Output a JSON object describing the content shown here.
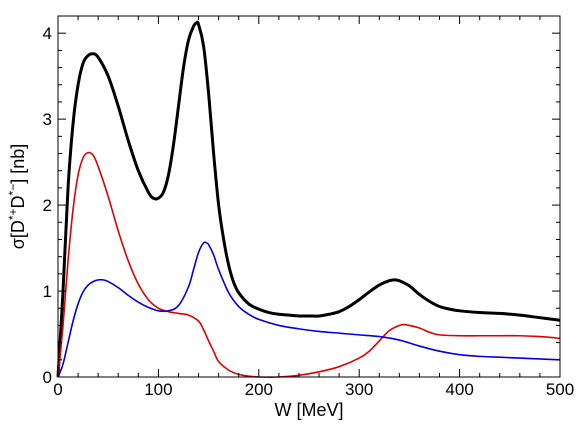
{
  "chart_data": {
    "type": "line",
    "title": "",
    "xlabel": "W [MeV]",
    "ylabel_parts": [
      "σ[D",
      "*+",
      "D",
      "*−",
      "] [nb]"
    ],
    "xlim": [
      0,
      500
    ],
    "ylim": [
      0,
      4.2
    ],
    "x_ticks": [
      0,
      100,
      200,
      300,
      400,
      500
    ],
    "y_ticks": [
      0,
      1,
      2,
      3,
      4
    ],
    "grid": false,
    "series": [
      {
        "color": "#000000",
        "points": [
          [
            0,
            0
          ],
          [
            5,
            1.0
          ],
          [
            10,
            2.2
          ],
          [
            15,
            2.95
          ],
          [
            20,
            3.4
          ],
          [
            25,
            3.65
          ],
          [
            30,
            3.74
          ],
          [
            35,
            3.76
          ],
          [
            40,
            3.72
          ],
          [
            50,
            3.5
          ],
          [
            60,
            3.15
          ],
          [
            70,
            2.75
          ],
          [
            80,
            2.4
          ],
          [
            90,
            2.15
          ],
          [
            95,
            2.08
          ],
          [
            100,
            2.08
          ],
          [
            105,
            2.15
          ],
          [
            110,
            2.35
          ],
          [
            115,
            2.7
          ],
          [
            120,
            3.15
          ],
          [
            125,
            3.6
          ],
          [
            130,
            3.92
          ],
          [
            135,
            4.08
          ],
          [
            138,
            4.12
          ],
          [
            140,
            4.1
          ],
          [
            145,
            3.85
          ],
          [
            150,
            3.3
          ],
          [
            155,
            2.6
          ],
          [
            160,
            2.0
          ],
          [
            165,
            1.6
          ],
          [
            170,
            1.3
          ],
          [
            175,
            1.1
          ],
          [
            180,
            0.98
          ],
          [
            190,
            0.85
          ],
          [
            200,
            0.79
          ],
          [
            210,
            0.75
          ],
          [
            220,
            0.73
          ],
          [
            230,
            0.72
          ],
          [
            240,
            0.71
          ],
          [
            250,
            0.71
          ],
          [
            260,
            0.71
          ],
          [
            270,
            0.73
          ],
          [
            280,
            0.76
          ],
          [
            290,
            0.82
          ],
          [
            300,
            0.9
          ],
          [
            310,
            0.99
          ],
          [
            320,
            1.07
          ],
          [
            330,
            1.12
          ],
          [
            335,
            1.13
          ],
          [
            340,
            1.12
          ],
          [
            350,
            1.06
          ],
          [
            360,
            0.96
          ],
          [
            370,
            0.88
          ],
          [
            380,
            0.82
          ],
          [
            390,
            0.79
          ],
          [
            400,
            0.77
          ],
          [
            420,
            0.75
          ],
          [
            440,
            0.74
          ],
          [
            460,
            0.72
          ],
          [
            480,
            0.69
          ],
          [
            500,
            0.66
          ]
        ]
      },
      {
        "color": "#e00000",
        "points": [
          [
            0,
            0
          ],
          [
            5,
            0.6
          ],
          [
            10,
            1.35
          ],
          [
            15,
            1.95
          ],
          [
            20,
            2.35
          ],
          [
            25,
            2.55
          ],
          [
            30,
            2.61
          ],
          [
            35,
            2.58
          ],
          [
            40,
            2.45
          ],
          [
            50,
            2.1
          ],
          [
            60,
            1.7
          ],
          [
            70,
            1.35
          ],
          [
            80,
            1.08
          ],
          [
            90,
            0.9
          ],
          [
            100,
            0.8
          ],
          [
            110,
            0.76
          ],
          [
            120,
            0.74
          ],
          [
            130,
            0.72
          ],
          [
            140,
            0.65
          ],
          [
            145,
            0.55
          ],
          [
            150,
            0.42
          ],
          [
            155,
            0.3
          ],
          [
            160,
            0.18
          ],
          [
            170,
            0.08
          ],
          [
            180,
            0.03
          ],
          [
            190,
            0.01
          ],
          [
            200,
            0.0
          ],
          [
            220,
            0.0
          ],
          [
            240,
            0.02
          ],
          [
            260,
            0.06
          ],
          [
            280,
            0.12
          ],
          [
            300,
            0.22
          ],
          [
            310,
            0.3
          ],
          [
            320,
            0.42
          ],
          [
            330,
            0.54
          ],
          [
            340,
            0.6
          ],
          [
            345,
            0.61
          ],
          [
            350,
            0.6
          ],
          [
            360,
            0.57
          ],
          [
            370,
            0.52
          ],
          [
            380,
            0.49
          ],
          [
            400,
            0.48
          ],
          [
            420,
            0.48
          ],
          [
            440,
            0.48
          ],
          [
            460,
            0.48
          ],
          [
            480,
            0.47
          ],
          [
            500,
            0.45
          ]
        ]
      },
      {
        "color": "#0000e0",
        "points": [
          [
            0,
            0
          ],
          [
            5,
            0.15
          ],
          [
            10,
            0.4
          ],
          [
            15,
            0.65
          ],
          [
            20,
            0.85
          ],
          [
            25,
            0.99
          ],
          [
            30,
            1.07
          ],
          [
            35,
            1.11
          ],
          [
            40,
            1.13
          ],
          [
            45,
            1.13
          ],
          [
            50,
            1.11
          ],
          [
            60,
            1.04
          ],
          [
            70,
            0.95
          ],
          [
            80,
            0.87
          ],
          [
            90,
            0.81
          ],
          [
            100,
            0.77
          ],
          [
            110,
            0.77
          ],
          [
            120,
            0.83
          ],
          [
            130,
            1.05
          ],
          [
            135,
            1.25
          ],
          [
            140,
            1.45
          ],
          [
            145,
            1.56
          ],
          [
            148,
            1.56
          ],
          [
            150,
            1.54
          ],
          [
            155,
            1.42
          ],
          [
            160,
            1.25
          ],
          [
            170,
            0.98
          ],
          [
            180,
            0.82
          ],
          [
            190,
            0.73
          ],
          [
            200,
            0.67
          ],
          [
            220,
            0.6
          ],
          [
            240,
            0.56
          ],
          [
            260,
            0.53
          ],
          [
            280,
            0.51
          ],
          [
            300,
            0.49
          ],
          [
            320,
            0.47
          ],
          [
            340,
            0.43
          ],
          [
            360,
            0.36
          ],
          [
            380,
            0.3
          ],
          [
            400,
            0.26
          ],
          [
            420,
            0.24
          ],
          [
            440,
            0.23
          ],
          [
            460,
            0.22
          ],
          [
            480,
            0.21
          ],
          [
            500,
            0.2
          ]
        ]
      }
    ]
  }
}
